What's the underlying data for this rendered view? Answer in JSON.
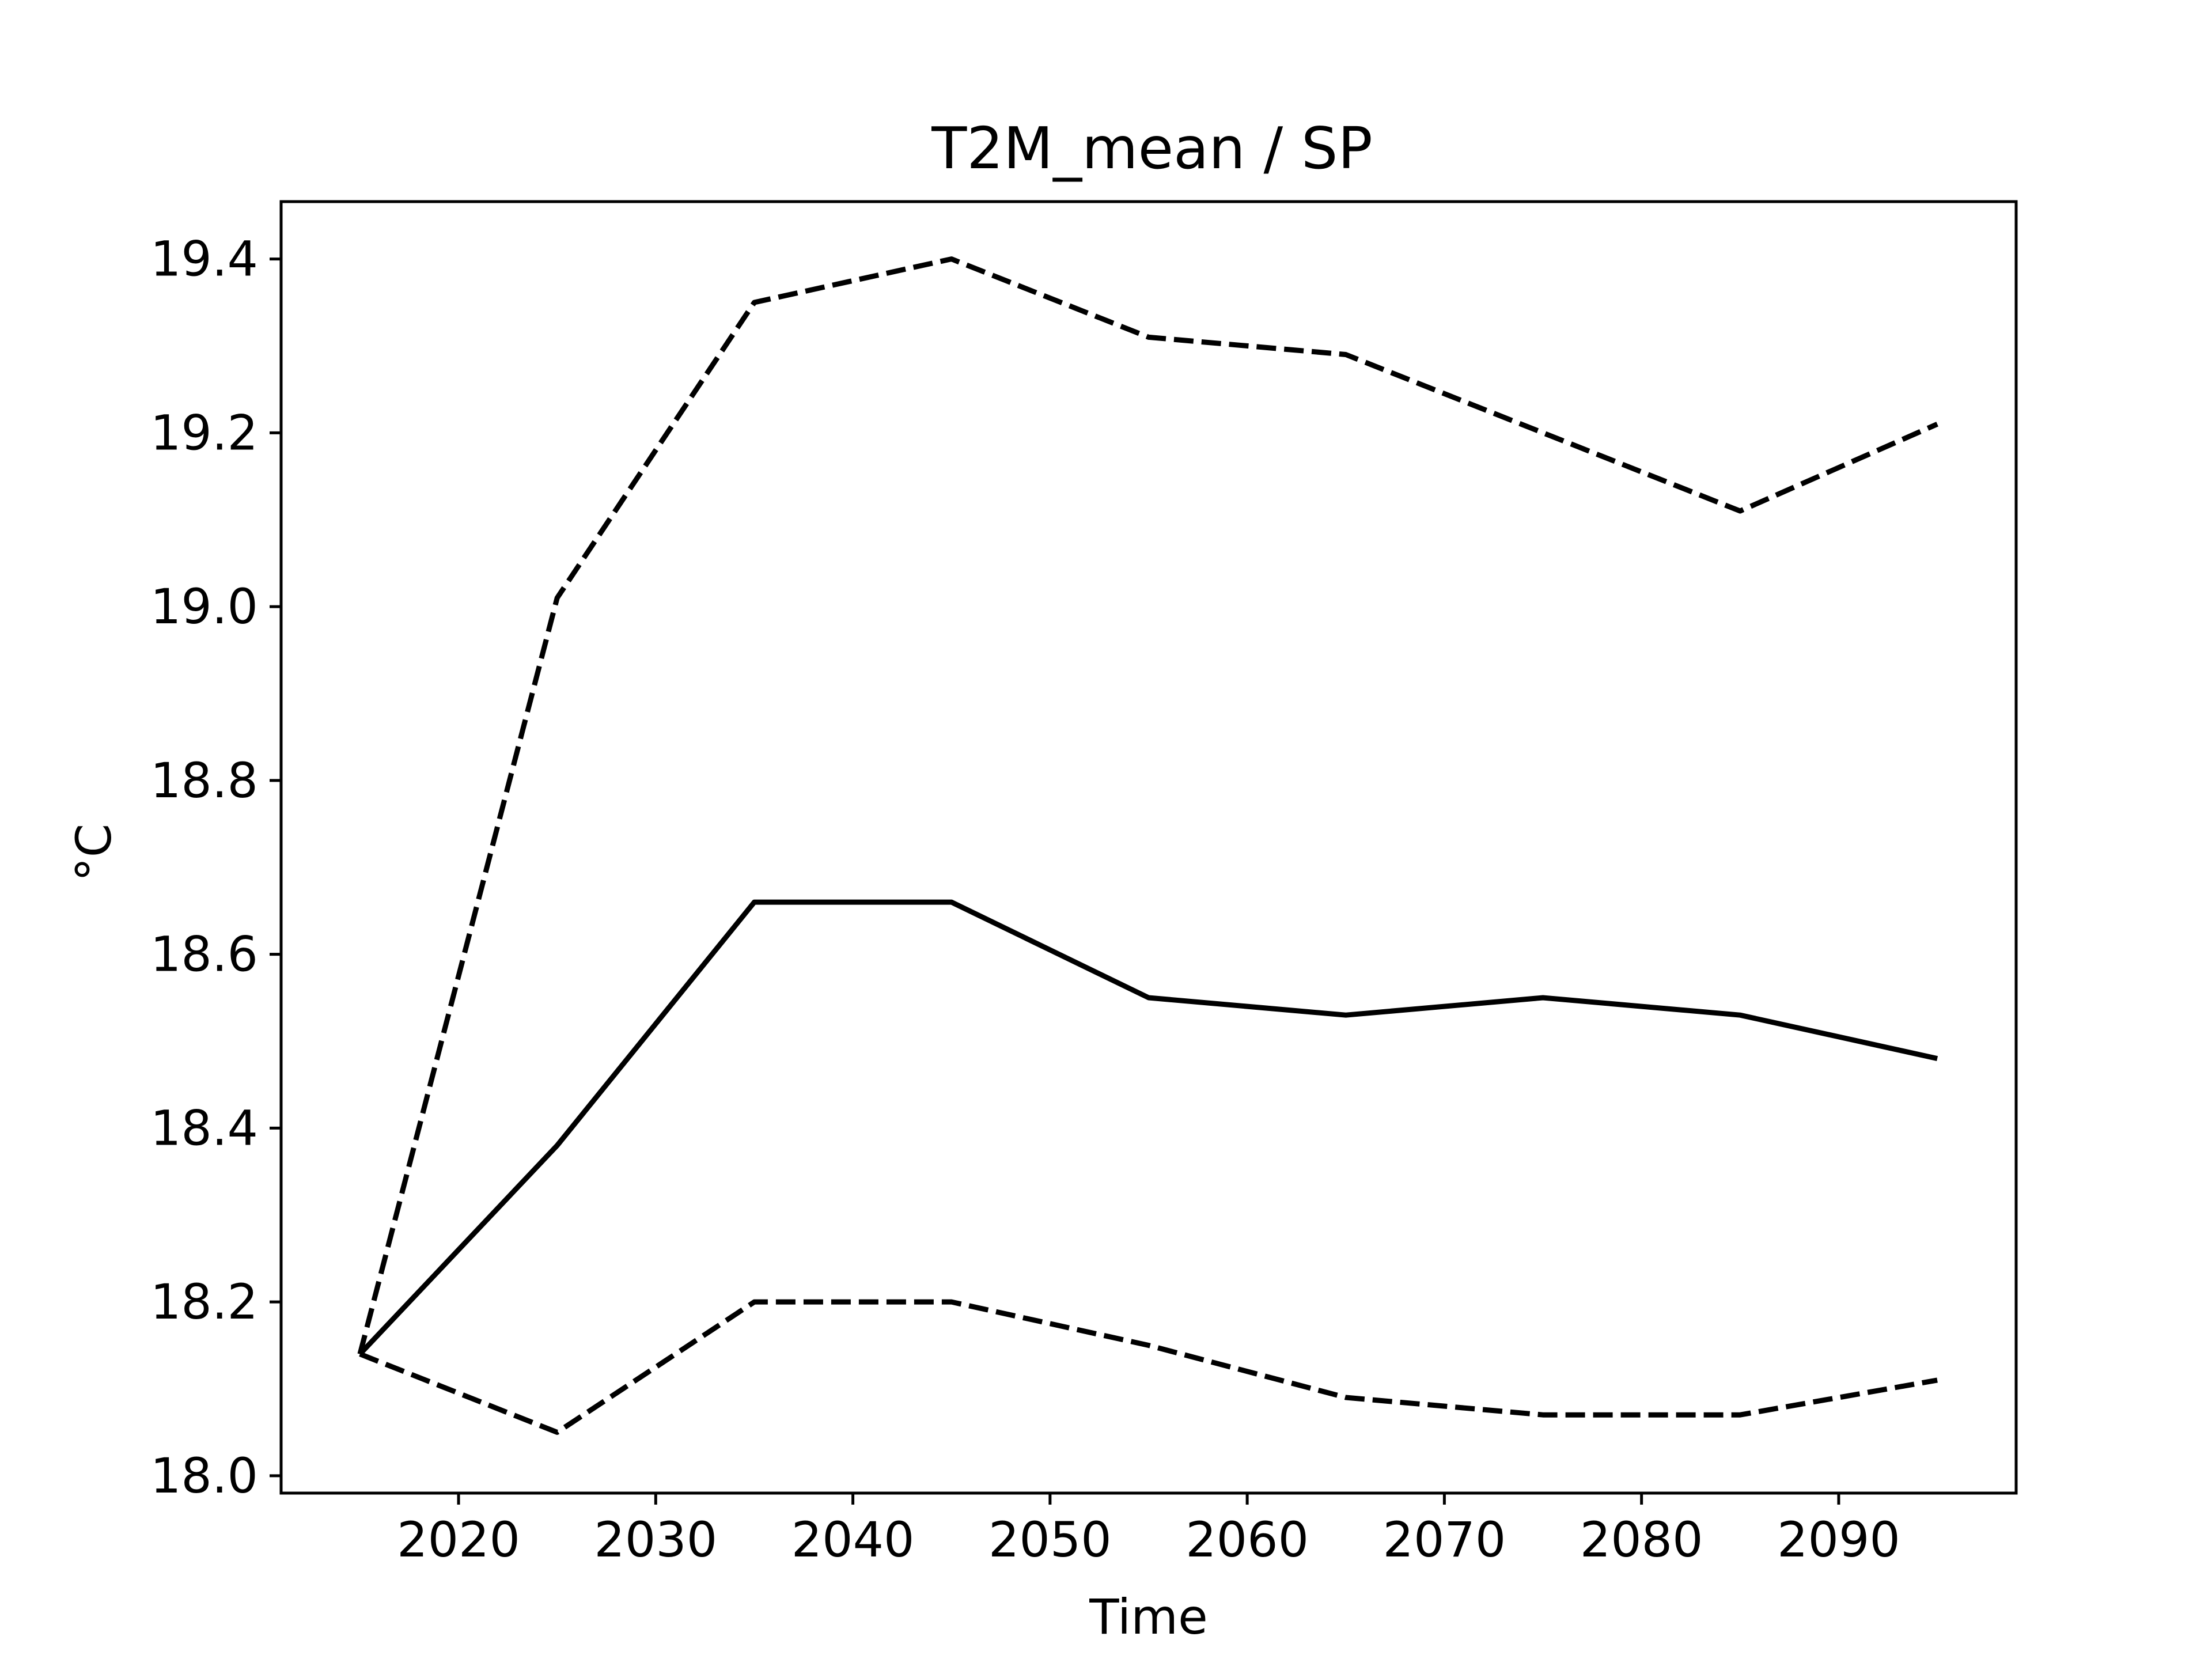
{
  "chart_data": {
    "type": "line",
    "title": "T2M_mean / SP",
    "xlabel": "Time",
    "ylabel": "°C",
    "x": [
      2015,
      2025,
      2035,
      2045,
      2055,
      2065,
      2075,
      2085,
      2095
    ],
    "series": [
      {
        "values": [
          18.14,
          19.01,
          19.35,
          19.4,
          19.31,
          19.29,
          19.2,
          19.11,
          19.21
        ],
        "style": "dashed",
        "color": "#000000"
      },
      {
        "values": [
          18.14,
          18.38,
          18.66,
          18.66,
          18.55,
          18.53,
          18.55,
          18.53,
          18.48
        ],
        "style": "solid",
        "color": "#000000"
      },
      {
        "values": [
          18.14,
          18.05,
          18.2,
          18.2,
          18.15,
          18.09,
          18.07,
          18.07,
          18.11
        ],
        "style": "dashed",
        "color": "#000000"
      }
    ],
    "xlim": [
      2011,
      2099
    ],
    "ylim": [
      17.98,
      19.466
    ],
    "xticks": [
      2020,
      2030,
      2040,
      2050,
      2060,
      2070,
      2080,
      2090
    ],
    "yticks": [
      18.0,
      18.2,
      18.4,
      18.6,
      18.8,
      19.0,
      19.2,
      19.4
    ],
    "ytick_labels": [
      "18.0",
      "18.2",
      "18.4",
      "18.6",
      "18.8",
      "19.0",
      "19.2",
      "19.4"
    ],
    "grid": false,
    "legend": "none"
  }
}
